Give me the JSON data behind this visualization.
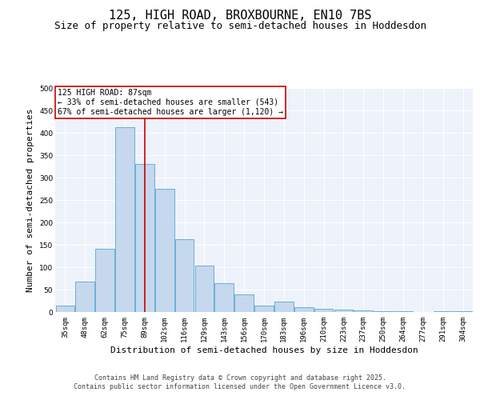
{
  "title": "125, HIGH ROAD, BROXBOURNE, EN10 7BS",
  "subtitle": "Size of property relative to semi-detached houses in Hoddesdon",
  "xlabel": "Distribution of semi-detached houses by size in Hoddesdon",
  "ylabel": "Number of semi-detached properties",
  "categories": [
    "35sqm",
    "48sqm",
    "62sqm",
    "75sqm",
    "89sqm",
    "102sqm",
    "116sqm",
    "129sqm",
    "143sqm",
    "156sqm",
    "170sqm",
    "183sqm",
    "196sqm",
    "210sqm",
    "223sqm",
    "237sqm",
    "250sqm",
    "264sqm",
    "277sqm",
    "291sqm",
    "304sqm"
  ],
  "values": [
    14,
    67,
    141,
    413,
    330,
    275,
    162,
    104,
    65,
    40,
    14,
    23,
    10,
    7,
    5,
    3,
    2,
    1,
    0,
    2,
    1
  ],
  "bar_color": "#c5d8ed",
  "bar_edge_color": "#6aaed6",
  "vline_x": 4,
  "vline_color": "#cc0000",
  "annotation_title": "125 HIGH ROAD: 87sqm",
  "annotation_line1": "← 33% of semi-detached houses are smaller (543)",
  "annotation_line2": "67% of semi-detached houses are larger (1,120) →",
  "annotation_box_color": "#ffffff",
  "annotation_box_edge": "#cc0000",
  "ylim": [
    0,
    500
  ],
  "yticks": [
    0,
    50,
    100,
    150,
    200,
    250,
    300,
    350,
    400,
    450,
    500
  ],
  "footer_line1": "Contains HM Land Registry data © Crown copyright and database right 2025.",
  "footer_line2": "Contains public sector information licensed under the Open Government Licence v3.0.",
  "bg_color": "#eef2fa",
  "grid_color": "#ffffff",
  "title_fontsize": 11,
  "subtitle_fontsize": 9,
  "axis_label_fontsize": 8,
  "tick_fontsize": 6.5,
  "annotation_fontsize": 7,
  "footer_fontsize": 6
}
